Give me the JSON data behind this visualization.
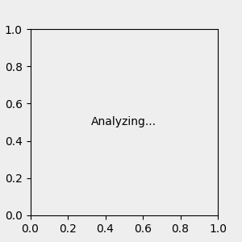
{
  "bg_color": "#eeeeee",
  "bond_color": "#000000",
  "o_color": "#ff0000",
  "n_color": "#0000cc",
  "cl_color": "#008800",
  "h_color": "#666666",
  "lw": 1.5,
  "lw2": 2.8
}
